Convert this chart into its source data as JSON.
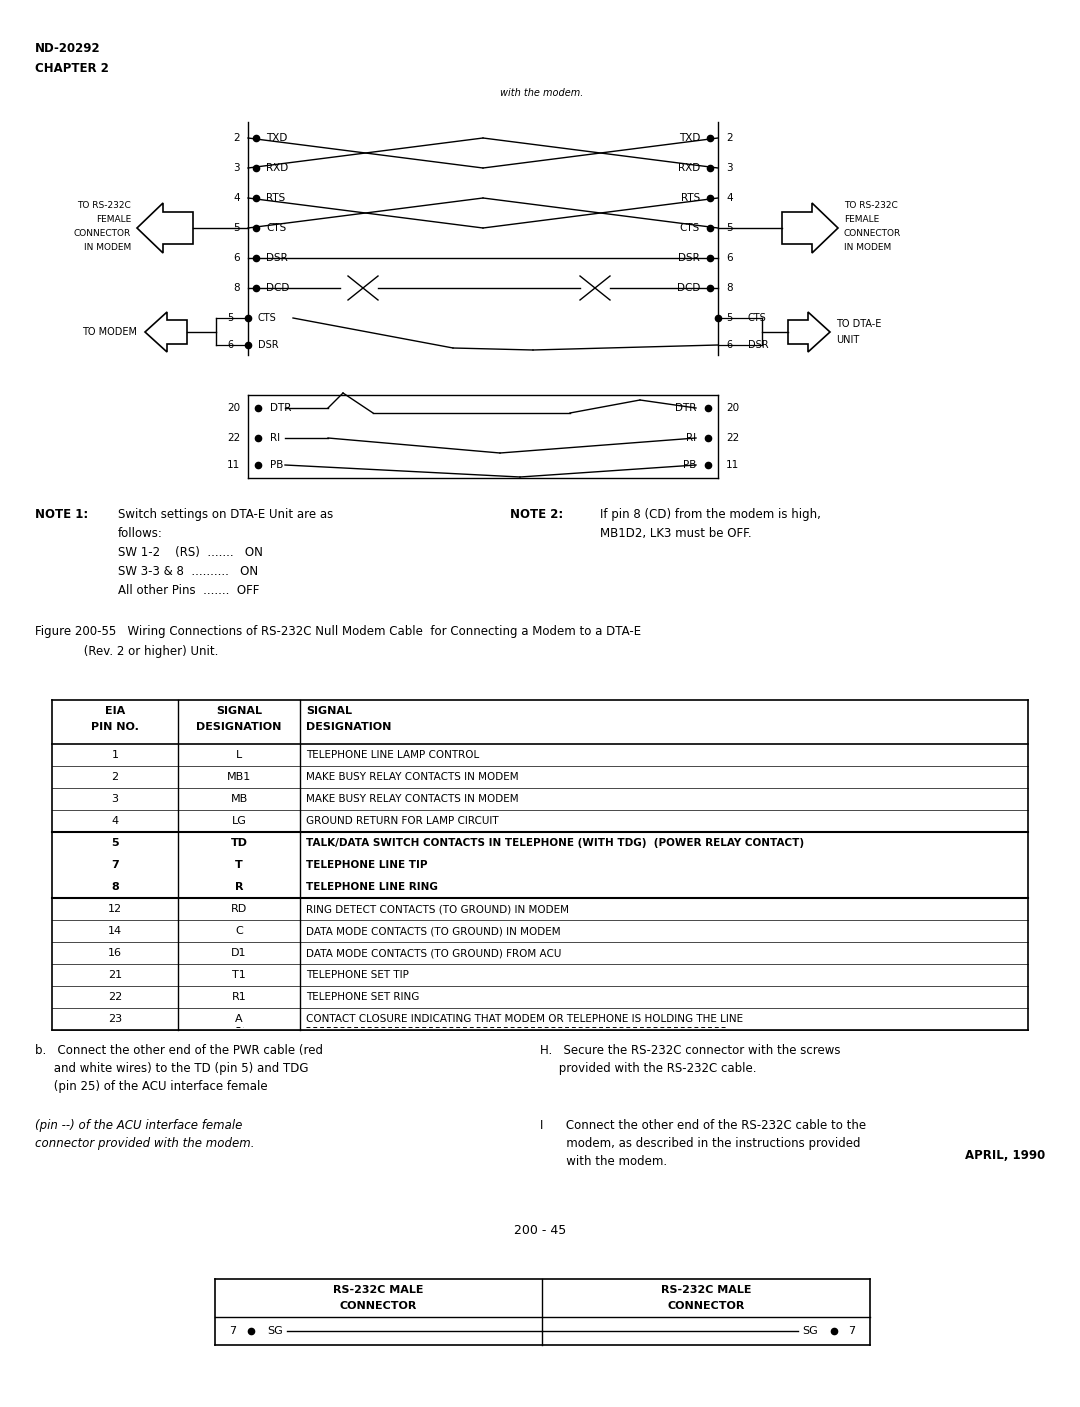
{
  "bg_color": "#ffffff",
  "text_color": "#000000",
  "header_line1": "ND-20292",
  "header_line2": "CHAPTER 2",
  "header_right": "with the modem.",
  "left_labels": [
    {
      "pin": "2",
      "sig": "TXD"
    },
    {
      "pin": "3",
      "sig": "RXD"
    },
    {
      "pin": "4",
      "sig": "RTS"
    },
    {
      "pin": "5",
      "sig": "CTS"
    },
    {
      "pin": "6",
      "sig": "DSR"
    },
    {
      "pin": "8",
      "sig": "DCD"
    }
  ],
  "right_labels": [
    {
      "pin": "2",
      "sig": "TXD"
    },
    {
      "pin": "3",
      "sig": "RXD"
    },
    {
      "pin": "4",
      "sig": "RTS"
    },
    {
      "pin": "5",
      "sig": "CTS"
    },
    {
      "pin": "6",
      "sig": "DSR"
    },
    {
      "pin": "8",
      "sig": "DCD"
    }
  ],
  "lower_left_labels": [
    {
      "pin": "20",
      "sig": "DTR"
    },
    {
      "pin": "22",
      "sig": "RI"
    },
    {
      "pin": "11",
      "sig": "PB"
    }
  ],
  "lower_right_labels": [
    {
      "pin": "20",
      "sig": "DTR"
    },
    {
      "pin": "22",
      "sig": "RI"
    },
    {
      "pin": "11",
      "sig": "PB"
    }
  ],
  "left_arrow_label": [
    "TO RS-232C",
    "FEMALE",
    "CONNECTOR",
    "IN MODEM"
  ],
  "right_arrow_label": [
    "TO RS-232C",
    "FEMALE",
    "CONNECTOR",
    "IN MODEM"
  ],
  "to_modem_label": "TO MODEM",
  "to_dta_label": [
    "TO DTA-E",
    "UNIT"
  ],
  "note1_title": "NOTE 1:",
  "note1_text": [
    "Switch settings on DTA-E Unit are as",
    "follows:",
    "SW 1-2    (RS)  .......   ON",
    "SW 3-3 & 8  ..........   ON",
    "All other Pins  .......  OFF"
  ],
  "note2_title": "NOTE 2:",
  "note2_text": [
    "If pin 8 (CD) from the modem is high,",
    "MB1D2, LK3 must be OFF."
  ],
  "figure_caption_line1": "Figure 200-55   Wiring Connections of RS-232C Null Modem Cable  for Connecting a Modem to a DTA-E",
  "figure_caption_line2": "             (Rev. 2 or higher) Unit.",
  "table_rows": [
    {
      "pin": "1",
      "sig": "L",
      "desc": "TELEPHONE LINE LAMP CONTROL",
      "bold": false,
      "box": false
    },
    {
      "pin": "2",
      "sig": "MB1",
      "desc": "MAKE BUSY RELAY CONTACTS IN MODEM",
      "bold": false,
      "box": false
    },
    {
      "pin": "3",
      "sig": "MB",
      "desc": "MAKE BUSY RELAY CONTACTS IN MODEM",
      "bold": false,
      "box": false
    },
    {
      "pin": "4",
      "sig": "LG",
      "desc": "GROUND RETURN FOR LAMP CIRCUIT",
      "bold": false,
      "box": false
    },
    {
      "pin": "5",
      "sig": "TD",
      "desc": "TALK/DATA SWITCH CONTACTS IN TELEPHONE (WITH TDG)  (POWER RELAY CONTACT)",
      "bold": true,
      "box": true
    },
    {
      "pin": "7",
      "sig": "T",
      "desc": "TELEPHONE LINE TIP",
      "bold": true,
      "box": true
    },
    {
      "pin": "8",
      "sig": "R",
      "desc": "TELEPHONE LINE RING",
      "bold": true,
      "box": true
    },
    {
      "pin": "12",
      "sig": "RD",
      "desc": "RING DETECT CONTACTS (TO GROUND) IN MODEM",
      "bold": false,
      "box": false
    },
    {
      "pin": "14",
      "sig": "C",
      "desc": "DATA MODE CONTACTS (TO GROUND) IN MODEM",
      "bold": false,
      "box": false
    },
    {
      "pin": "16",
      "sig": "D1",
      "desc": "DATA MODE CONTACTS (TO GROUND) FROM ACU",
      "bold": false,
      "box": false
    },
    {
      "pin": "21",
      "sig": "T1",
      "desc": "TELEPHONE SET TIP",
      "bold": false,
      "box": false
    },
    {
      "pin": "22",
      "sig": "R1",
      "desc": "TELEPHONE SET RING",
      "bold": false,
      "box": false
    },
    {
      "pin": "23",
      "sig": "A",
      "desc": "CONTACT CLOSURE INDICATING THAT MODEM OR TELEPHONE IS HOLDING THE LINE",
      "bold": false,
      "box": false,
      "dashed": true
    }
  ],
  "text_b_lines": [
    "b.   Connect the other end of the PWR cable (red",
    "     and white wires) to the TD (pin 5) and TDG",
    "     (pin 25) of the ACU interface female"
  ],
  "text_h_lines": [
    "H.   Secure the RS-232C connector with the screws",
    "     provided with the RS-232C cable."
  ],
  "text_i_left_lines": [
    "(pin --) of the ACU interface female",
    "connector provided with the modem."
  ],
  "text_i_right_lines": [
    "I      Connect the other end of the RS-232C cable to the",
    "       modem, as described in the instructions provided",
    "       with the modem."
  ],
  "date_label": "APRIL, 1990",
  "page_num": "200 - 45",
  "bottom_table_left_header": [
    "RS-232C MALE",
    "CONNECTOR"
  ],
  "bottom_table_right_header": [
    "RS-232C MALE",
    "CONNECTOR"
  ],
  "bottom_table_row": {
    "left_pin": "7",
    "left_sig": "SG",
    "right_sig": "SG",
    "right_pin": "7"
  }
}
